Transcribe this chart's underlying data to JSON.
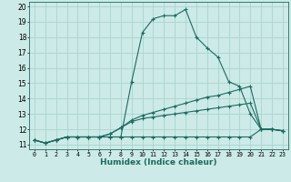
{
  "xlabel": "Humidex (Indice chaleur)",
  "bg_color": "#cceae7",
  "grid_color": "#aad4d0",
  "line_color": "#1a6b60",
  "xlim": [
    -0.5,
    23.5
  ],
  "ylim": [
    10.7,
    20.3
  ],
  "xticks": [
    0,
    1,
    2,
    3,
    4,
    5,
    6,
    7,
    8,
    9,
    10,
    11,
    12,
    13,
    14,
    15,
    16,
    17,
    18,
    19,
    20,
    21,
    22,
    23
  ],
  "yticks": [
    11,
    12,
    13,
    14,
    15,
    16,
    17,
    18,
    19,
    20
  ],
  "series": [
    {
      "x": [
        0,
        1,
        2,
        3,
        4,
        5,
        6,
        7,
        8,
        9,
        10,
        11,
        12,
        13,
        14,
        15,
        16,
        17,
        18,
        19,
        20,
        21,
        22,
        23
      ],
      "y": [
        11.3,
        11.1,
        11.3,
        11.5,
        11.5,
        11.5,
        11.5,
        11.5,
        11.5,
        15.1,
        18.3,
        19.2,
        19.4,
        19.4,
        19.8,
        18.0,
        17.3,
        16.7,
        15.1,
        14.8,
        13.0,
        12.0,
        12.0,
        11.9
      ]
    },
    {
      "x": [
        0,
        1,
        2,
        3,
        4,
        5,
        6,
        7,
        8,
        9,
        10,
        11,
        12,
        13,
        14,
        15,
        16,
        17,
        18,
        19,
        20,
        21,
        22,
        23
      ],
      "y": [
        11.3,
        11.1,
        11.3,
        11.5,
        11.5,
        11.5,
        11.5,
        11.7,
        12.1,
        12.6,
        12.9,
        13.1,
        13.3,
        13.5,
        13.7,
        13.9,
        14.1,
        14.2,
        14.4,
        14.6,
        14.8,
        12.0,
        12.0,
        11.9
      ]
    },
    {
      "x": [
        0,
        1,
        2,
        3,
        4,
        5,
        6,
        7,
        8,
        9,
        10,
        11,
        12,
        13,
        14,
        15,
        16,
        17,
        18,
        19,
        20,
        21,
        22,
        23
      ],
      "y": [
        11.3,
        11.1,
        11.3,
        11.5,
        11.5,
        11.5,
        11.5,
        11.7,
        12.1,
        12.5,
        12.7,
        12.8,
        12.9,
        13.0,
        13.1,
        13.2,
        13.3,
        13.4,
        13.5,
        13.6,
        13.7,
        12.0,
        12.0,
        11.9
      ]
    },
    {
      "x": [
        0,
        1,
        2,
        3,
        4,
        5,
        6,
        7,
        8,
        9,
        10,
        11,
        12,
        13,
        14,
        15,
        16,
        17,
        18,
        19,
        20,
        21,
        22,
        23
      ],
      "y": [
        11.3,
        11.1,
        11.3,
        11.5,
        11.5,
        11.5,
        11.5,
        11.5,
        11.5,
        11.5,
        11.5,
        11.5,
        11.5,
        11.5,
        11.5,
        11.5,
        11.5,
        11.5,
        11.5,
        11.5,
        11.5,
        12.0,
        12.0,
        11.9
      ]
    }
  ]
}
